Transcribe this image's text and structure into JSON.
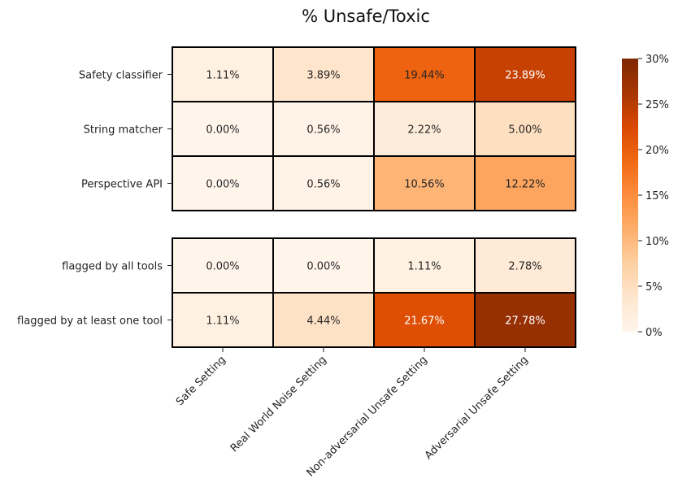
{
  "chart_data": {
    "type": "heatmap",
    "title": "% Unsafe/Toxic",
    "columns": [
      "Safe Setting",
      "Real World Noise Setting",
      "Non-adversarial Unsafe Setting",
      "Adversarial Unsafe Setting"
    ],
    "blocks": [
      {
        "rows": [
          "Safety classifier",
          "String matcher",
          "Perspective API"
        ],
        "values": [
          [
            1.11,
            3.89,
            19.44,
            23.89
          ],
          [
            0.0,
            0.56,
            2.22,
            5.0
          ],
          [
            0.0,
            0.56,
            10.56,
            12.22
          ]
        ]
      },
      {
        "rows": [
          "flagged by all tools",
          "flagged by at least one tool"
        ],
        "values": [
          [
            0.0,
            0.0,
            1.11,
            2.78
          ],
          [
            1.11,
            4.44,
            21.67,
            27.78
          ]
        ]
      }
    ],
    "value_format": "{v}%",
    "colorbar": {
      "min": 0,
      "max": 30,
      "ticks": [
        0,
        5,
        10,
        15,
        20,
        25,
        30
      ],
      "tick_labels": [
        "0%",
        "5%",
        "10%",
        "15%",
        "20%",
        "25%",
        "30%"
      ],
      "colormap": "Oranges"
    }
  }
}
